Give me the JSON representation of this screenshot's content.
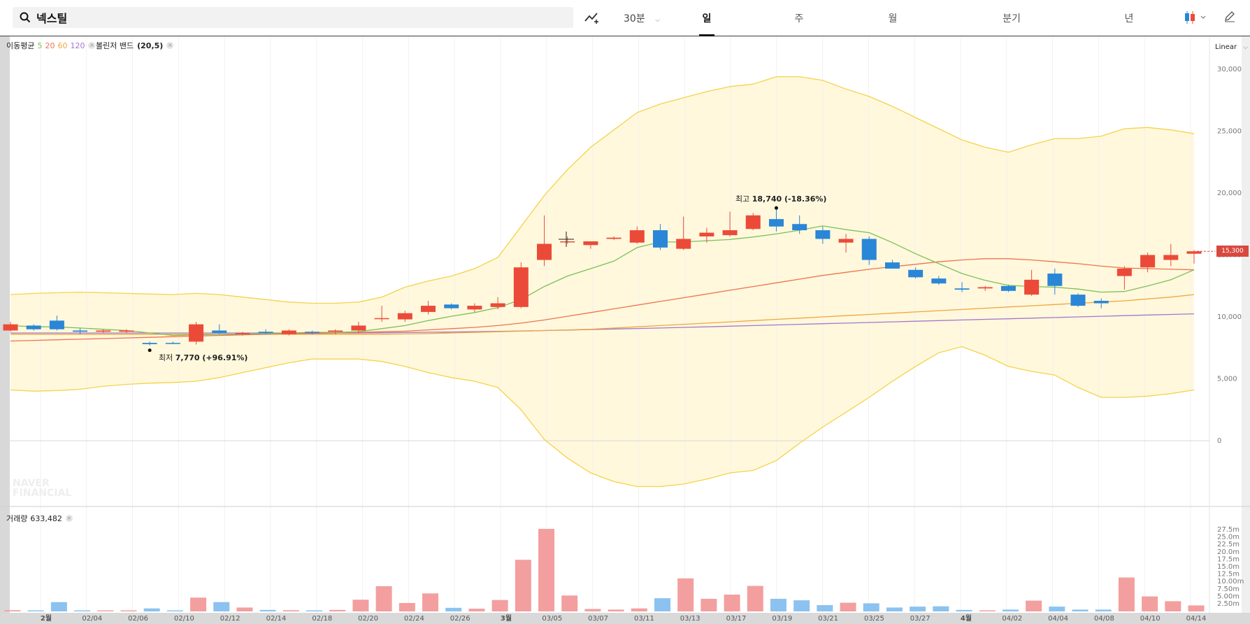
{
  "search": {
    "query": "넥스틸"
  },
  "toolbar": {
    "interval": "30분",
    "tabs": [
      "일",
      "주",
      "월",
      "분기",
      "년"
    ],
    "active_tab": "일",
    "scale": "Linear"
  },
  "legend": {
    "ma_label": "이동평균",
    "ma_periods": [
      "5",
      "20",
      "60",
      "120"
    ],
    "bb_label": "볼린저 밴드",
    "bb_params": "(20,5)"
  },
  "annotations": {
    "high_label": "최고",
    "high_value": "18,740 (-18.36%)",
    "low_label": "최저",
    "low_value": "7,770 (+96.91%)"
  },
  "current_price": "15,300",
  "volume": {
    "label": "거래량",
    "value": "633,482"
  },
  "watermark": [
    "NAVER",
    "FINANCIAL"
  ],
  "colors": {
    "up": "#ec4a38",
    "down": "#2a86d6",
    "ma5": "#7dc05a",
    "ma20": "#ef7350",
    "ma60": "#f0a640",
    "ma120": "#a377cf",
    "band": "#f5d24a",
    "band_fill": "#fff8dc"
  },
  "chart_data": {
    "type": "candlestick",
    "price_axis": {
      "ticks": [
        0,
        5000,
        10000,
        15000,
        20000,
        25000,
        30000
      ],
      "ylim": [
        0,
        30000
      ]
    },
    "volume_axis": {
      "ticks": [
        "2.50m",
        "5.00m",
        "7.50m",
        "10.00m",
        "12.5m",
        "15.0m",
        "17.5m",
        "20.0m",
        "22.5m",
        "25.0m",
        "27.5m"
      ]
    },
    "x_labels": [
      "2월",
      "02/04",
      "02/06",
      "02/10",
      "02/12",
      "02/14",
      "02/18",
      "02/20",
      "02/24",
      "02/26",
      "3월",
      "03/05",
      "03/07",
      "03/11",
      "03/13",
      "03/17",
      "03/19",
      "03/21",
      "03/25",
      "03/27",
      "4월",
      "04/02",
      "04/04",
      "04/08",
      "04/10",
      "04/14"
    ],
    "candles": [
      {
        "o": 8900,
        "h": 9600,
        "l": 8800,
        "c": 9400
      },
      {
        "o": 9300,
        "h": 9400,
        "l": 8900,
        "c": 9000
      },
      {
        "o": 9700,
        "h": 10100,
        "l": 8900,
        "c": 9000
      },
      {
        "o": 8900,
        "h": 9100,
        "l": 8600,
        "c": 8800
      },
      {
        "o": 8800,
        "h": 9000,
        "l": 8700,
        "c": 8900
      },
      {
        "o": 8800,
        "h": 9000,
        "l": 8700,
        "c": 8900
      },
      {
        "o": 7900,
        "h": 8000,
        "l": 7700,
        "c": 7800
      },
      {
        "o": 7900,
        "h": 8000,
        "l": 7800,
        "c": 7850
      },
      {
        "o": 8000,
        "h": 9600,
        "l": 7770,
        "c": 9400
      },
      {
        "o": 8900,
        "h": 9400,
        "l": 8600,
        "c": 8700
      },
      {
        "o": 8600,
        "h": 8800,
        "l": 8500,
        "c": 8700
      },
      {
        "o": 8800,
        "h": 9000,
        "l": 8600,
        "c": 8700
      },
      {
        "o": 8600,
        "h": 9000,
        "l": 8500,
        "c": 8900
      },
      {
        "o": 8800,
        "h": 8900,
        "l": 8600,
        "c": 8700
      },
      {
        "o": 8800,
        "h": 9000,
        "l": 8600,
        "c": 8900
      },
      {
        "o": 8900,
        "h": 9600,
        "l": 8700,
        "c": 9300
      },
      {
        "o": 9900,
        "h": 10900,
        "l": 9600,
        "c": 9900
      },
      {
        "o": 9800,
        "h": 10500,
        "l": 9600,
        "c": 10300
      },
      {
        "o": 10400,
        "h": 11300,
        "l": 10200,
        "c": 10900
      },
      {
        "o": 11000,
        "h": 11100,
        "l": 10600,
        "c": 10700
      },
      {
        "o": 10600,
        "h": 11100,
        "l": 10400,
        "c": 10900
      },
      {
        "o": 10800,
        "h": 11600,
        "l": 10600,
        "c": 11100
      },
      {
        "o": 10800,
        "h": 14400,
        "l": 10700,
        "c": 14000
      },
      {
        "o": 14600,
        "h": 18200,
        "l": 14100,
        "c": 15900
      },
      {
        "o": 16100,
        "h": 16500,
        "l": 15900,
        "c": 16100
      },
      {
        "o": 15800,
        "h": 16100,
        "l": 15500,
        "c": 16100
      },
      {
        "o": 16300,
        "h": 16500,
        "l": 16200,
        "c": 16400
      },
      {
        "o": 16000,
        "h": 17300,
        "l": 15900,
        "c": 17000
      },
      {
        "o": 17000,
        "h": 17500,
        "l": 15400,
        "c": 15600
      },
      {
        "o": 15500,
        "h": 18100,
        "l": 15400,
        "c": 16300
      },
      {
        "o": 16500,
        "h": 17200,
        "l": 16000,
        "c": 16800
      },
      {
        "o": 16600,
        "h": 18500,
        "l": 16500,
        "c": 17000
      },
      {
        "o": 17100,
        "h": 18400,
        "l": 17000,
        "c": 18200
      },
      {
        "o": 17900,
        "h": 18740,
        "l": 16900,
        "c": 17300
      },
      {
        "o": 17500,
        "h": 18200,
        "l": 16700,
        "c": 17000
      },
      {
        "o": 17000,
        "h": 17300,
        "l": 15900,
        "c": 16300
      },
      {
        "o": 16000,
        "h": 16700,
        "l": 15200,
        "c": 16300
      },
      {
        "o": 16300,
        "h": 16500,
        "l": 14200,
        "c": 14600
      },
      {
        "o": 14400,
        "h": 14600,
        "l": 13900,
        "c": 13900
      },
      {
        "o": 13800,
        "h": 14000,
        "l": 13100,
        "c": 13200
      },
      {
        "o": 13100,
        "h": 13300,
        "l": 12600,
        "c": 12700
      },
      {
        "o": 12300,
        "h": 12800,
        "l": 12000,
        "c": 12200
      },
      {
        "o": 12300,
        "h": 12500,
        "l": 12100,
        "c": 12400
      },
      {
        "o": 12500,
        "h": 12600,
        "l": 12000,
        "c": 12100
      },
      {
        "o": 11800,
        "h": 13800,
        "l": 11700,
        "c": 13000
      },
      {
        "o": 13500,
        "h": 13900,
        "l": 11800,
        "c": 12500
      },
      {
        "o": 11800,
        "h": 11900,
        "l": 10800,
        "c": 10900
      },
      {
        "o": 11300,
        "h": 11500,
        "l": 10700,
        "c": 11100
      },
      {
        "o": 13300,
        "h": 14100,
        "l": 12200,
        "c": 13900
      },
      {
        "o": 14000,
        "h": 15200,
        "l": 13600,
        "c": 15000
      },
      {
        "o": 14600,
        "h": 15900,
        "l": 14100,
        "c": 15000
      },
      {
        "o": 15100,
        "h": 15400,
        "l": 14300,
        "c": 15300
      }
    ],
    "volumes_m": [
      0.4,
      0.3,
      3.1,
      0.2,
      0.2,
      0.3,
      1.0,
      0.2,
      4.6,
      3.1,
      1.3,
      0.5,
      0.4,
      0.3,
      0.5,
      3.9,
      8.4,
      2.8,
      6.0,
      1.2,
      0.9,
      3.8,
      17.2,
      27.5,
      5.3,
      0.8,
      0.6,
      1.0,
      4.4,
      11.0,
      4.2,
      5.6,
      8.5,
      4.2,
      3.7,
      2.1,
      2.9,
      2.7,
      1.3,
      1.6,
      1.7,
      0.5,
      0.3,
      0.6,
      3.6,
      1.6,
      0.6,
      0.6,
      11.3,
      5.0,
      3.4,
      2.0
    ],
    "ma5": [
      9300,
      9200,
      9200,
      9100,
      9000,
      8900,
      8700,
      8500,
      8550,
      8600,
      8600,
      8650,
      8700,
      8750,
      8750,
      8800,
      9050,
      9300,
      9700,
      10050,
      10350,
      10750,
      11400,
      12450,
      13300,
      13900,
      14500,
      15600,
      16050,
      16050,
      16150,
      16250,
      16450,
      16700,
      17000,
      17350,
      17050,
      16800,
      16000,
      15100,
      14300,
      13500,
      12950,
      12550,
      12450,
      12400,
      12250,
      12000,
      12050,
      12500,
      13000,
      13800
    ],
    "ma20": [
      8050,
      8100,
      8150,
      8200,
      8250,
      8300,
      8350,
      8400,
      8450,
      8500,
      8550,
      8600,
      8650,
      8650,
      8700,
      8750,
      8800,
      8850,
      8950,
      9050,
      9150,
      9300,
      9500,
      9750,
      10050,
      10350,
      10650,
      10950,
      11250,
      11550,
      11850,
      12150,
      12450,
      12750,
      13050,
      13350,
      13600,
      13850,
      14050,
      14250,
      14450,
      14600,
      14700,
      14700,
      14600,
      14450,
      14300,
      14100,
      13950,
      13900,
      13850,
      13800
    ],
    "ma60": [
      8600,
      8600,
      8600,
      8600,
      8600,
      8600,
      8600,
      8600,
      8600,
      8600,
      8600,
      8600,
      8600,
      8600,
      8600,
      8600,
      8600,
      8620,
      8650,
      8700,
      8750,
      8800,
      8850,
      8900,
      8950,
      9000,
      9100,
      9200,
      9300,
      9400,
      9500,
      9600,
      9700,
      9800,
      9900,
      10000,
      10100,
      10200,
      10300,
      10400,
      10500,
      10600,
      10700,
      10800,
      10900,
      11000,
      11100,
      11200,
      11300,
      11450,
      11600,
      11800
    ],
    "ma120": [
      8700,
      8700,
      8700,
      8700,
      8700,
      8700,
      8700,
      8700,
      8700,
      8700,
      8700,
      8700,
      8700,
      8700,
      8700,
      8700,
      8720,
      8740,
      8760,
      8780,
      8800,
      8830,
      8860,
      8900,
      8940,
      8980,
      9020,
      9060,
      9100,
      9150,
      9200,
      9250,
      9300,
      9350,
      9400,
      9450,
      9500,
      9550,
      9600,
      9650,
      9700,
      9750,
      9800,
      9850,
      9900,
      9950,
      10000,
      10050,
      10100,
      10150,
      10200,
      10250
    ],
    "bb_upper": [
      11800,
      11900,
      11950,
      12000,
      11950,
      11900,
      11850,
      11800,
      11900,
      11800,
      11600,
      11400,
      11200,
      11100,
      11100,
      11200,
      11600,
      12400,
      12900,
      13300,
      13900,
      14800,
      17300,
      19800,
      21900,
      23700,
      25100,
      26500,
      27200,
      27700,
      28200,
      28600,
      28800,
      29400,
      29400,
      29100,
      28400,
      27800,
      27000,
      26100,
      25200,
      24300,
      23700,
      23300,
      23900,
      24400,
      24400,
      24600,
      25200,
      25300,
      25100,
      24800
    ],
    "bb_lower": [
      4100,
      4000,
      4050,
      4150,
      4400,
      4550,
      4650,
      4700,
      4800,
      5100,
      5500,
      5900,
      6300,
      6600,
      6600,
      6600,
      6400,
      6000,
      5500,
      5100,
      4800,
      4300,
      2500,
      100,
      -1400,
      -2600,
      -3300,
      -3700,
      -3700,
      -3500,
      -3100,
      -2600,
      -2400,
      -1600,
      -200,
      1100,
      2300,
      3500,
      4800,
      6000,
      7100,
      7600,
      6900,
      6000,
      5600,
      5300,
      4300,
      3500,
      3500,
      3600,
      3800,
      4100
    ]
  }
}
